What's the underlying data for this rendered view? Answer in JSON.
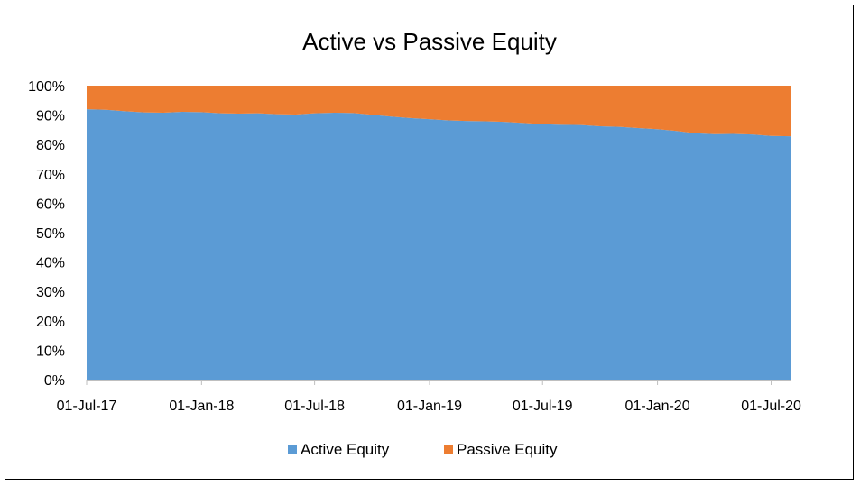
{
  "chart_data": {
    "type": "area",
    "stacked": true,
    "percent": true,
    "title": "Active vs Passive Equity",
    "xlabel": "",
    "ylabel": "",
    "ylim": [
      0,
      100
    ],
    "yticks": [
      "0%",
      "10%",
      "20%",
      "30%",
      "40%",
      "50%",
      "60%",
      "70%",
      "80%",
      "90%",
      "100%"
    ],
    "xticks": [
      "01-Jul-17",
      "01-Jan-18",
      "01-Jul-18",
      "01-Jan-19",
      "01-Jul-19",
      "01-Jan-20",
      "01-Jul-20"
    ],
    "x": [
      "2017-07-01",
      "2017-08-01",
      "2017-09-01",
      "2017-10-01",
      "2017-11-01",
      "2017-12-01",
      "2018-01-01",
      "2018-02-01",
      "2018-03-01",
      "2018-04-01",
      "2018-05-01",
      "2018-06-01",
      "2018-07-01",
      "2018-08-01",
      "2018-09-01",
      "2018-10-01",
      "2018-11-01",
      "2018-12-01",
      "2019-01-01",
      "2019-02-01",
      "2019-03-01",
      "2019-04-01",
      "2019-05-01",
      "2019-06-01",
      "2019-07-01",
      "2019-08-01",
      "2019-09-01",
      "2019-10-01",
      "2019-11-01",
      "2019-12-01",
      "2020-01-01",
      "2020-02-01",
      "2020-03-01",
      "2020-04-01",
      "2020-05-01",
      "2020-06-01",
      "2020-07-01",
      "2020-08-01"
    ],
    "grid": false,
    "legend_position": "bottom",
    "series": [
      {
        "name": "Active Equity",
        "color": "#5b9bd5",
        "values": [
          92.0,
          91.8,
          91.3,
          90.9,
          90.8,
          91.1,
          91.0,
          90.6,
          90.5,
          90.6,
          90.3,
          90.2,
          90.6,
          90.8,
          90.7,
          90.1,
          89.5,
          89.0,
          88.6,
          88.2,
          88.0,
          87.9,
          87.7,
          87.3,
          86.9,
          86.7,
          86.6,
          86.2,
          86.0,
          85.6,
          85.2,
          84.6,
          83.8,
          83.5,
          83.6,
          83.4,
          82.9,
          82.8
        ]
      },
      {
        "name": "Passive Equity",
        "color": "#ed7d31",
        "values": [
          8.0,
          8.2,
          8.7,
          9.1,
          9.2,
          8.9,
          9.0,
          9.4,
          9.5,
          9.4,
          9.7,
          9.8,
          9.4,
          9.2,
          9.3,
          9.9,
          10.5,
          11.0,
          11.4,
          11.8,
          12.0,
          12.1,
          12.3,
          12.7,
          13.1,
          13.3,
          13.4,
          13.8,
          14.0,
          14.4,
          14.8,
          15.4,
          16.2,
          16.5,
          16.4,
          16.6,
          17.1,
          17.2
        ]
      }
    ]
  }
}
